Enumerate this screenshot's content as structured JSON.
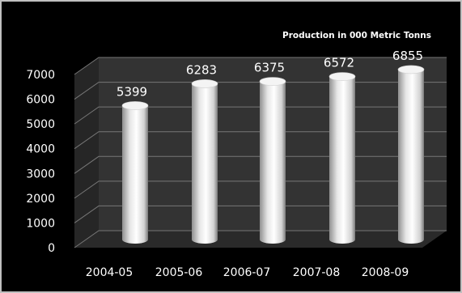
{
  "chart_data": {
    "type": "bar",
    "title": "Production in 000 Metric Tonns",
    "categories": [
      "2004-05",
      "2005-06",
      "2006-07",
      "2007-08",
      "2008-09"
    ],
    "values": [
      5399,
      6283,
      6375,
      6572,
      6855
    ],
    "data_labels": [
      "5399",
      "6283",
      "6375",
      "6572",
      "6855"
    ],
    "y_ticks": [
      "0",
      "1000",
      "2000",
      "3000",
      "4000",
      "5000",
      "6000",
      "7000"
    ],
    "ylim": [
      0,
      7000
    ],
    "xlabel": "",
    "ylabel": "",
    "grid": true,
    "legend": "none",
    "style": "3d-cylinder",
    "colors": {
      "background": "#000000",
      "plot_wall": "#333333",
      "plot_floor": "#2a2a2a",
      "grid": "#777777",
      "bar": "#ffffff",
      "text": "#ffffff"
    }
  }
}
